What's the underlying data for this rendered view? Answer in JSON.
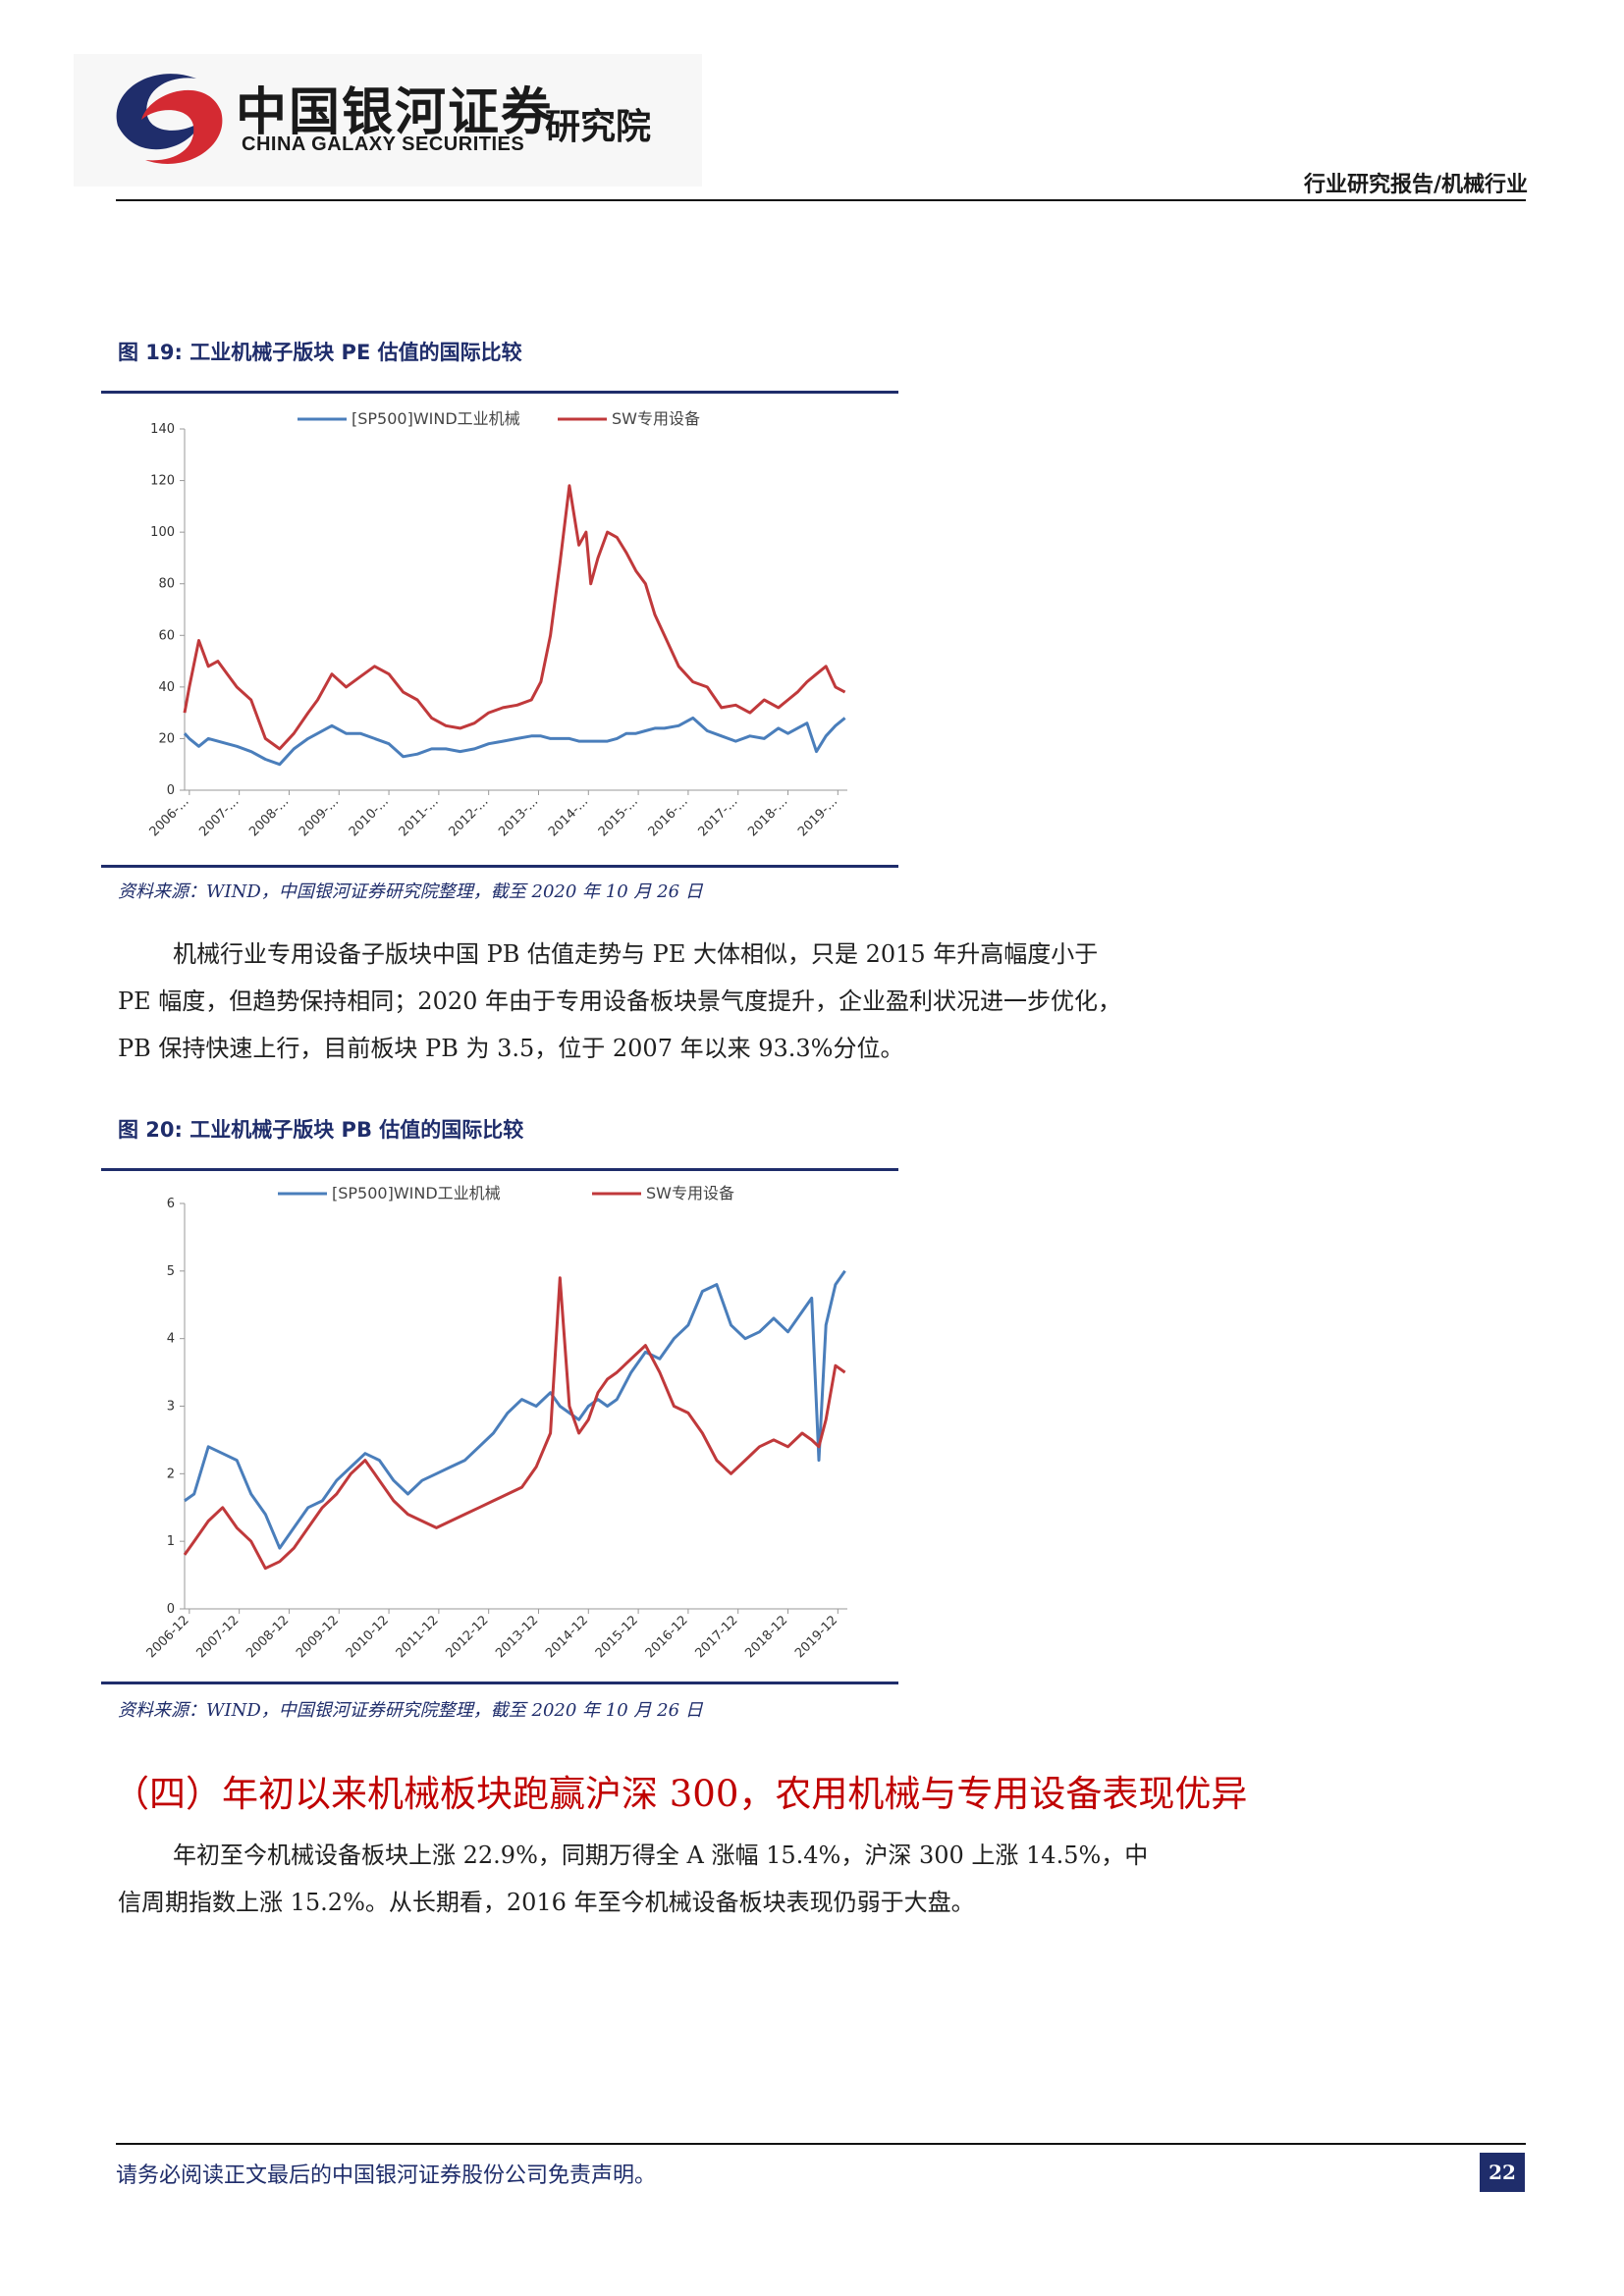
{
  "header": {
    "logo_cn": "中国银河证券",
    "logo_en": "CHINA GALAXY SECURITIES",
    "logo_suffix": "研究院",
    "report_type": "行业研究报告/机械行业"
  },
  "colors": {
    "navy": "#1f2d6b",
    "heading_red": "#c00000",
    "series_blue": "#4a7ebb",
    "series_red": "#c0393b"
  },
  "figure19": {
    "title": "图 19:  工业机械子版块 PE 估值的国际比较",
    "source": "资料来源：WIND，中国银河证券研究院整理，截至 2020 年 10 月 26 日"
  },
  "figure20": {
    "title": "图 20:  工业机械子版块 PB 估值的国际比较",
    "source": "资料来源：WIND，中国银河证券研究院整理，截至 2020 年 10 月 26 日"
  },
  "paragraph1": [
    "机械行业专用设备子版块中国 PB 估值走势与 PE 大体相似，只是 2015 年升高幅度小于",
    "PE 幅度，但趋势保持相同；2020 年由于专用设备板块景气度提升，企业盈利状况进一步优化，",
    "PB 保持快速上行，目前板块 PB 为 3.5，位于 2007 年以来 93.3%分位。"
  ],
  "section_heading": "（四）年初以来机械板块跑赢沪深 300，农用机械与专用设备表现优异",
  "paragraph2": [
    "年初至今机械设备板块上涨 22.9%，同期万得全 A 涨幅 15.4%，沪深 300 上涨 14.5%，中",
    "信周期指数上涨 15.2%。从长期看，2016 年至今机械设备板块表现仍弱于大盘。"
  ],
  "footer": {
    "disclaimer": "请务必阅读正文最后的中国银河证券股份公司免责声明。",
    "page_number": "22"
  },
  "chart_data": [
    {
      "type": "line",
      "title": "",
      "xlabel": "",
      "ylabel": "",
      "ylim": [
        0,
        140
      ],
      "yticks": [
        "0",
        "20",
        "40",
        "60",
        "80",
        "100",
        "120",
        "140"
      ],
      "x_tick_labels": [
        "2006-...",
        "2007-...",
        "2008-...",
        "2009-...",
        "2010-...",
        "2011-...",
        "2012-...",
        "2013-...",
        "2014-...",
        "2015-...",
        "2016-...",
        "2017-...",
        "2018-...",
        "2019-..."
      ],
      "x": [
        2006.9,
        2007.0,
        2007.2,
        2007.4,
        2007.6,
        2007.8,
        2008.0,
        2008.3,
        2008.6,
        2008.9,
        2009.2,
        2009.5,
        2009.7,
        2010.0,
        2010.3,
        2010.6,
        2010.9,
        2011.2,
        2011.5,
        2011.8,
        2012.1,
        2012.4,
        2012.7,
        2013.0,
        2013.3,
        2013.6,
        2013.9,
        2014.2,
        2014.4,
        2014.6,
        2014.8,
        2015.0,
        2015.2,
        2015.35,
        2015.45,
        2015.6,
        2015.8,
        2016.0,
        2016.2,
        2016.4,
        2016.6,
        2016.8,
        2017.0,
        2017.3,
        2017.6,
        2017.9,
        2018.2,
        2018.5,
        2018.8,
        2019.1,
        2019.4,
        2019.6,
        2019.8,
        2020.0,
        2020.2,
        2020.4,
        2020.6,
        2020.8
      ],
      "legend": "top",
      "series": [
        {
          "name": "[SP500]WIND工业机械",
          "values": [
            22,
            20,
            17,
            20,
            19,
            18,
            17,
            15,
            12,
            10,
            16,
            20,
            22,
            25,
            22,
            22,
            20,
            18,
            13,
            14,
            16,
            16,
            15,
            16,
            18,
            19,
            20,
            21,
            21,
            20,
            20,
            20,
            19,
            19,
            19,
            19,
            19,
            20,
            22,
            22,
            23,
            24,
            24,
            25,
            28,
            23,
            21,
            19,
            21,
            20,
            24,
            22,
            24,
            26,
            15,
            21,
            25,
            28
          ]
        },
        {
          "name": "SW专用设备",
          "values": [
            30,
            40,
            58,
            48,
            50,
            45,
            40,
            35,
            20,
            16,
            22,
            30,
            35,
            45,
            40,
            44,
            48,
            45,
            38,
            35,
            28,
            25,
            24,
            26,
            30,
            32,
            33,
            35,
            42,
            60,
            88,
            118,
            95,
            100,
            80,
            90,
            100,
            98,
            92,
            85,
            80,
            68,
            60,
            48,
            42,
            40,
            32,
            33,
            30,
            35,
            32,
            35,
            38,
            42,
            45,
            48,
            40,
            38
          ]
        }
      ]
    },
    {
      "type": "line",
      "title": "",
      "xlabel": "",
      "ylabel": "",
      "ylim": [
        0,
        6
      ],
      "yticks": [
        "0",
        "1",
        "2",
        "3",
        "4",
        "5",
        "6"
      ],
      "x_tick_labels": [
        "2006-12",
        "2007-12",
        "2008-12",
        "2009-12",
        "2010-12",
        "2011-12",
        "2012-12",
        "2013-12",
        "2014-12",
        "2015-12",
        "2016-12",
        "2017-12",
        "2018-12",
        "2019-12"
      ],
      "x": [
        2006.9,
        2007.1,
        2007.4,
        2007.7,
        2008.0,
        2008.3,
        2008.6,
        2008.9,
        2009.2,
        2009.5,
        2009.8,
        2010.1,
        2010.4,
        2010.7,
        2011.0,
        2011.3,
        2011.6,
        2011.9,
        2012.2,
        2012.5,
        2012.8,
        2013.1,
        2013.4,
        2013.7,
        2014.0,
        2014.3,
        2014.6,
        2014.8,
        2015.0,
        2015.2,
        2015.4,
        2015.6,
        2015.8,
        2016.0,
        2016.3,
        2016.6,
        2016.9,
        2017.2,
        2017.5,
        2017.8,
        2018.1,
        2018.4,
        2018.7,
        2019.0,
        2019.3,
        2019.6,
        2019.9,
        2020.1,
        2020.25,
        2020.4,
        2020.6,
        2020.8
      ],
      "legend": "top",
      "series": [
        {
          "name": "[SP500]WIND工业机械",
          "values": [
            1.6,
            1.7,
            2.4,
            2.3,
            2.2,
            1.7,
            1.4,
            0.9,
            1.2,
            1.5,
            1.6,
            1.9,
            2.1,
            2.3,
            2.2,
            1.9,
            1.7,
            1.9,
            2.0,
            2.1,
            2.2,
            2.4,
            2.6,
            2.9,
            3.1,
            3.0,
            3.2,
            3.0,
            2.9,
            2.8,
            3.0,
            3.1,
            3.0,
            3.1,
            3.5,
            3.8,
            3.7,
            4.0,
            4.2,
            4.7,
            4.8,
            4.2,
            4.0,
            4.1,
            4.3,
            4.1,
            4.4,
            4.6,
            2.2,
            4.2,
            4.8,
            5.0
          ]
        },
        {
          "name": "SW专用设备",
          "values": [
            0.8,
            1.0,
            1.3,
            1.5,
            1.2,
            1.0,
            0.6,
            0.7,
            0.9,
            1.2,
            1.5,
            1.7,
            2.0,
            2.2,
            1.9,
            1.6,
            1.4,
            1.3,
            1.2,
            1.3,
            1.4,
            1.5,
            1.6,
            1.7,
            1.8,
            2.1,
            2.6,
            4.9,
            3.0,
            2.6,
            2.8,
            3.2,
            3.4,
            3.5,
            3.7,
            3.9,
            3.5,
            3.0,
            2.9,
            2.6,
            2.2,
            2.0,
            2.2,
            2.4,
            2.5,
            2.4,
            2.6,
            2.5,
            2.4,
            2.8,
            3.6,
            3.5
          ]
        }
      ]
    }
  ]
}
